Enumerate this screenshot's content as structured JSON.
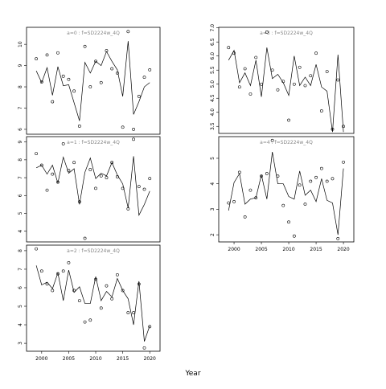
{
  "xlabel": "Year",
  "chart_data": [
    {
      "type": "line",
      "title": "a=0  :  f=SD2224w_4Q",
      "x": [
        1999,
        2000,
        2001,
        2002,
        2003,
        2004,
        2005,
        2006,
        2007,
        2008,
        2009,
        2010,
        2011,
        2012,
        2013,
        2014,
        2015,
        2016,
        2017,
        2018,
        2019,
        2020
      ],
      "xlim": [
        1997.2,
        2021.9
      ],
      "ylim": [
        5.77,
        10.8
      ],
      "yticks": [
        6,
        7,
        8,
        9,
        10
      ],
      "series": [
        {
          "style": "line",
          "color": "#000000",
          "values": [
            8.75,
            8.2,
            8.9,
            7.6,
            8.95,
            8.05,
            8.1,
            7.25,
            6.4,
            9.15,
            8.65,
            9.2,
            9.0,
            9.66,
            9.2,
            8.8,
            7.55,
            10.15,
            6.7,
            7.3,
            8.0,
            8.2
          ]
        },
        {
          "style": "points",
          "color": "#000000",
          "values": [
            9.32,
            8.23,
            9.5,
            7.3,
            9.6,
            8.5,
            8.35,
            7.8,
            6.15,
            9.9,
            8.0,
            9.2,
            8.2,
            9.7,
            8.85,
            8.65,
            6.1,
            10.6,
            6.0,
            7.55,
            8.45,
            8.8
          ]
        }
      ]
    },
    {
      "type": "line",
      "title": "a=1  :  f=SD2224w_4Q",
      "x": [
        1999,
        2000,
        2001,
        2002,
        2003,
        2004,
        2005,
        2006,
        2007,
        2008,
        2009,
        2010,
        2011,
        2012,
        2013,
        2014,
        2015,
        2016,
        2017,
        2018,
        2019,
        2020
      ],
      "xlim": [
        1997.2,
        2021.9
      ],
      "ylim": [
        3.4,
        9.3
      ],
      "yticks": [
        4,
        5,
        6,
        7,
        8,
        9
      ],
      "series": [
        {
          "style": "line",
          "color": "#000000",
          "values": [
            7.55,
            7.7,
            7.2,
            7.7,
            6.7,
            8.15,
            7.25,
            7.5,
            5.5,
            7.3,
            8.1,
            6.95,
            7.25,
            7.1,
            7.85,
            7.15,
            6.65,
            5.3,
            8.2,
            4.9,
            5.5,
            6.25
          ]
        },
        {
          "style": "points",
          "color": "#000000",
          "values": [
            8.35,
            7.7,
            6.3,
            7.2,
            6.75,
            8.9,
            7.4,
            7.85,
            5.65,
            3.6,
            7.45,
            6.4,
            7.1,
            7.0,
            7.85,
            7.05,
            6.4,
            5.25,
            9.15,
            6.5,
            6.35,
            6.95
          ]
        }
      ]
    },
    {
      "type": "line",
      "title": "a=2  :  f=SD2224w_4Q",
      "x": [
        1999,
        2000,
        2001,
        2002,
        2003,
        2004,
        2005,
        2006,
        2007,
        2008,
        2009,
        2010,
        2011,
        2012,
        2013,
        2014,
        2015,
        2016,
        2017,
        2018,
        2019,
        2020
      ],
      "xlim": [
        1997.2,
        2021.9
      ],
      "ylim": [
        2.57,
        8.3
      ],
      "yticks": [
        3,
        4,
        5,
        6,
        7,
        8
      ],
      "xticks": [
        2000,
        2005,
        2010,
        2015,
        2020
      ],
      "series": [
        {
          "style": "line",
          "color": "#000000",
          "values": [
            7.2,
            6.15,
            6.3,
            5.95,
            6.8,
            5.3,
            6.95,
            5.75,
            6.05,
            5.15,
            5.15,
            6.6,
            5.3,
            5.8,
            5.5,
            6.5,
            5.85,
            5.4,
            4.0,
            6.35,
            3.1,
            3.95
          ]
        },
        {
          "style": "points",
          "color": "#000000",
          "values": [
            8.1,
            6.9,
            6.2,
            5.85,
            6.75,
            6.9,
            7.35,
            5.85,
            5.3,
            4.15,
            4.25,
            6.45,
            4.9,
            6.1,
            5.4,
            6.7,
            5.85,
            4.65,
            4.65,
            6.2,
            2.75,
            3.9
          ]
        }
      ]
    },
    {
      "type": "line",
      "title": "a=3  :  f=SD2224w_4Q",
      "x": [
        1999,
        2000,
        2001,
        2002,
        2003,
        2004,
        2005,
        2006,
        2007,
        2008,
        2009,
        2010,
        2011,
        2012,
        2013,
        2014,
        2015,
        2016,
        2017,
        2018,
        2019,
        2020
      ],
      "xlim": [
        1997.2,
        2021.9
      ],
      "ylim": [
        3.25,
        7.02
      ],
      "yticks": [
        3.5,
        {
          "value": 4,
          "label": "4.0"
        },
        4.5,
        {
          "value": 5,
          "label": "5.0"
        },
        5.5,
        {
          "value": 6,
          "label": "6.0"
        },
        6.5,
        {
          "value": 7,
          "label": "7.0"
        }
      ],
      "series": [
        {
          "style": "line",
          "color": "#000000",
          "values": [
            5.85,
            6.2,
            5.05,
            5.4,
            4.95,
            5.85,
            4.55,
            6.3,
            5.2,
            5.35,
            5.05,
            4.6,
            6.0,
            4.95,
            5.25,
            4.95,
            5.7,
            4.9,
            4.75,
            3.3,
            6.05,
            3.3
          ]
        },
        {
          "style": "points",
          "color": "#000000",
          "values": [
            6.3,
            6.1,
            4.9,
            5.55,
            4.65,
            5.95,
            5.0,
            6.85,
            5.5,
            4.8,
            5.1,
            3.72,
            5.0,
            5.6,
            4.95,
            5.3,
            6.1,
            4.05,
            5.45,
            3.4,
            5.15,
            3.5
          ]
        }
      ]
    },
    {
      "type": "line",
      "title": "a=4  :  f=SD2224w_4Q",
      "x": [
        1999,
        2000,
        2001,
        2002,
        2003,
        2004,
        2005,
        2006,
        2007,
        2008,
        2009,
        2010,
        2011,
        2012,
        2013,
        2014,
        2015,
        2016,
        2017,
        2018,
        2019,
        2020
      ],
      "xlim": [
        1997.2,
        2021.9
      ],
      "ylim": [
        1.72,
        5.85
      ],
      "yticks": [
        2,
        3,
        4,
        5
      ],
      "xticks": [
        2000,
        2005,
        2010,
        2015,
        2020
      ],
      "series": [
        {
          "style": "line",
          "color": "#000000",
          "values": [
            2.95,
            4.05,
            4.4,
            3.2,
            3.4,
            3.45,
            4.35,
            3.4,
            5.25,
            4.0,
            4.0,
            3.5,
            3.4,
            4.5,
            3.55,
            3.75,
            3.3,
            4.2,
            3.35,
            3.25,
            2.0,
            4.6
          ]
        },
        {
          "style": "points",
          "color": "#000000",
          "values": [
            3.25,
            3.3,
            4.45,
            2.7,
            3.75,
            3.45,
            4.3,
            4.4,
            5.7,
            4.3,
            3.15,
            2.5,
            1.95,
            3.95,
            3.2,
            4.1,
            4.25,
            4.6,
            4.1,
            4.2,
            1.85,
            4.85
          ]
        }
      ]
    }
  ]
}
